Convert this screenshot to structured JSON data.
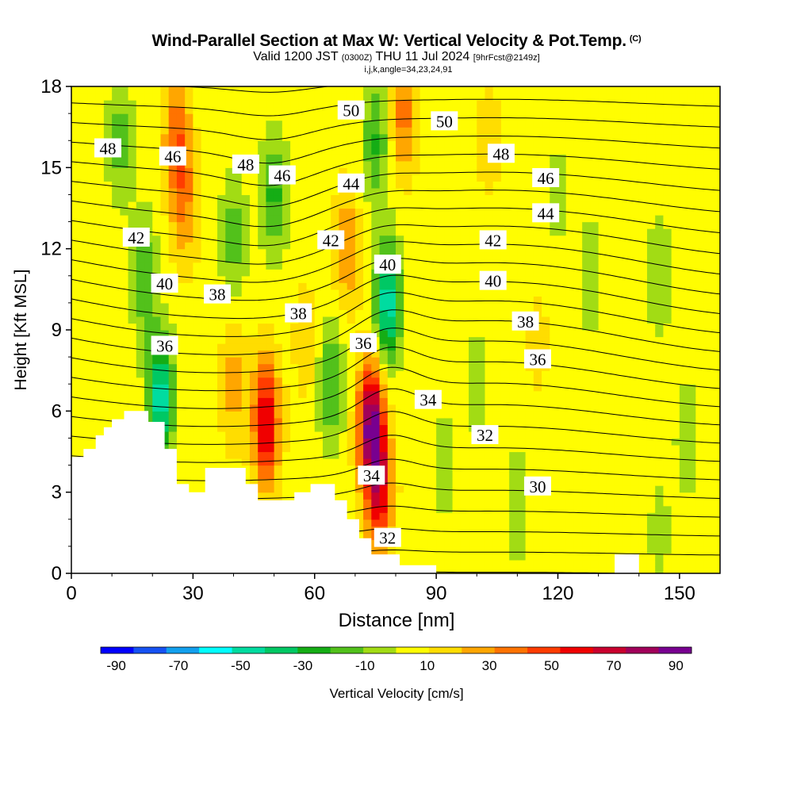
{
  "header": {
    "title": "Wind-Parallel Section at Max W: Vertical Velocity & Pot.Temp.",
    "title_suffix": "(C)",
    "valid_prefix": "Valid 1200 JST",
    "valid_utc": "(0300Z)",
    "valid_date": "THU 11 Jul 2024",
    "forecast": "[9hrFcst@2149z]",
    "indices": "i,j,k,angle=34,23,24,91"
  },
  "chart_data": {
    "type": "heatmap",
    "xlabel": "Distance [nm]",
    "ylabel": "Height [Kft MSL]",
    "xlim": [
      0,
      160
    ],
    "ylim": [
      0,
      18
    ],
    "x_ticks": [
      0,
      30,
      60,
      90,
      120,
      150
    ],
    "y_ticks": [
      0,
      3,
      6,
      9,
      12,
      15,
      18
    ],
    "colorbar": {
      "label": "Vertical Velocity [cm/s]",
      "bounds": [
        -95,
        95
      ],
      "tick_values": [
        -90,
        -70,
        -50,
        -30,
        -10,
        10,
        30,
        50,
        70,
        90
      ],
      "colors": [
        "#0000ff",
        "#1652f3",
        "#12a0ee",
        "#00ffff",
        "#00dca0",
        "#00c864",
        "#15ad15",
        "#52c11b",
        "#a2dc14",
        "#fffd01",
        "#ffdd00",
        "#ffa600",
        "#ff7300",
        "#ff3c00",
        "#f00000",
        "#c9002e",
        "#a1005a",
        "#780090"
      ]
    },
    "shaded_field": "Vertical Velocity [cm/s]",
    "velocity_cores": [
      {
        "x": 26,
        "y": 16,
        "w": 36
      },
      {
        "x": 28,
        "y": 13.5,
        "w": 22
      },
      {
        "x": 48,
        "y": 5.6,
        "w": 62
      },
      {
        "x": 40,
        "y": 7,
        "w": 20
      },
      {
        "x": 74,
        "y": 5.5,
        "w": 80
      },
      {
        "x": 76,
        "y": 3,
        "w": 50
      },
      {
        "x": 82,
        "y": 17,
        "w": 30
      },
      {
        "x": 68,
        "y": 12,
        "w": 25
      },
      {
        "x": 58,
        "y": 8.5,
        "w": 12
      },
      {
        "x": 103,
        "y": 16,
        "w": 10
      },
      {
        "x": 115,
        "y": 8.5,
        "w": 8
      },
      {
        "x": 22,
        "y": 6.5,
        "w": -55
      },
      {
        "x": 12,
        "y": 16,
        "w": -22
      },
      {
        "x": 18,
        "y": 11,
        "w": -25
      },
      {
        "x": 40,
        "y": 12.5,
        "w": -22
      },
      {
        "x": 50,
        "y": 14,
        "w": -30
      },
      {
        "x": 64,
        "y": 7,
        "w": -30
      },
      {
        "x": 78,
        "y": 10,
        "w": -55
      },
      {
        "x": 75,
        "y": 16,
        "w": -28
      },
      {
        "x": 92,
        "y": 4,
        "w": -12
      },
      {
        "x": 100,
        "y": 7,
        "w": -12
      },
      {
        "x": 110,
        "y": 2.5,
        "w": -14
      },
      {
        "x": 128,
        "y": 11,
        "w": -14
      },
      {
        "x": 145,
        "y": 11,
        "w": -16
      },
      {
        "x": 152,
        "y": 5,
        "w": -14
      },
      {
        "x": 145,
        "y": 1.5,
        "w": -10
      },
      {
        "x": 120,
        "y": 14,
        "w": -10
      }
    ],
    "contour_field": "Pot.Temp. (C)",
    "contour_interval": 1,
    "contour_levels": [
      29,
      54
    ],
    "contour_labels": [
      {
        "text": "48",
        "x": 9,
        "y": 15.7
      },
      {
        "text": "46",
        "x": 25,
        "y": 15.4
      },
      {
        "text": "48",
        "x": 43,
        "y": 15.1
      },
      {
        "text": "50",
        "x": 69,
        "y": 17.1
      },
      {
        "text": "50",
        "x": 92,
        "y": 16.7
      },
      {
        "text": "48",
        "x": 106,
        "y": 15.5
      },
      {
        "text": "46",
        "x": 52,
        "y": 14.7
      },
      {
        "text": "44",
        "x": 69,
        "y": 14.4
      },
      {
        "text": "46",
        "x": 117,
        "y": 14.6
      },
      {
        "text": "44",
        "x": 117,
        "y": 13.3
      },
      {
        "text": "42",
        "x": 16,
        "y": 12.4
      },
      {
        "text": "42",
        "x": 64,
        "y": 12.3
      },
      {
        "text": "42",
        "x": 104,
        "y": 12.3
      },
      {
        "text": "40",
        "x": 78,
        "y": 11.4
      },
      {
        "text": "40",
        "x": 23,
        "y": 10.7
      },
      {
        "text": "40",
        "x": 104,
        "y": 10.8
      },
      {
        "text": "38",
        "x": 36,
        "y": 10.3
      },
      {
        "text": "38",
        "x": 56,
        "y": 9.6
      },
      {
        "text": "38",
        "x": 112,
        "y": 9.3
      },
      {
        "text": "36",
        "x": 23,
        "y": 8.4
      },
      {
        "text": "36",
        "x": 72,
        "y": 8.5
      },
      {
        "text": "36",
        "x": 115,
        "y": 7.9
      },
      {
        "text": "34",
        "x": 88,
        "y": 6.4
      },
      {
        "text": "32",
        "x": 102,
        "y": 5.1
      },
      {
        "text": "34",
        "x": 74,
        "y": 3.6
      },
      {
        "text": "30",
        "x": 115,
        "y": 3.2
      },
      {
        "text": "32",
        "x": 78,
        "y": 1.3
      }
    ],
    "terrain": [
      [
        0,
        4.3
      ],
      [
        3,
        4.3
      ],
      [
        3,
        4.6
      ],
      [
        6,
        4.6
      ],
      [
        6,
        5.1
      ],
      [
        8,
        5.1
      ],
      [
        8,
        5.4
      ],
      [
        10,
        5.4
      ],
      [
        10,
        5.7
      ],
      [
        13,
        5.7
      ],
      [
        13,
        6
      ],
      [
        19,
        6
      ],
      [
        19,
        5.6
      ],
      [
        23,
        5.6
      ],
      [
        23,
        4.6
      ],
      [
        26,
        4.6
      ],
      [
        26,
        3.3
      ],
      [
        29,
        3.3
      ],
      [
        29,
        3
      ],
      [
        33,
        3
      ],
      [
        33,
        3.9
      ],
      [
        43,
        3.9
      ],
      [
        43,
        3.3
      ],
      [
        46,
        3.3
      ],
      [
        46,
        2.7
      ],
      [
        55,
        2.7
      ],
      [
        55,
        3
      ],
      [
        59,
        3
      ],
      [
        59,
        3.3
      ],
      [
        65,
        3.3
      ],
      [
        65,
        2.7
      ],
      [
        68,
        2.7
      ],
      [
        68,
        2
      ],
      [
        71,
        2
      ],
      [
        71,
        1.3
      ],
      [
        74,
        1.3
      ],
      [
        74,
        0.7
      ],
      [
        81,
        0.7
      ],
      [
        81,
        0.3
      ],
      [
        90,
        0.3
      ],
      [
        90,
        0
      ],
      [
        134,
        0
      ],
      [
        134,
        0.7
      ],
      [
        140,
        0.7
      ],
      [
        140,
        0
      ],
      [
        160,
        0
      ]
    ]
  }
}
